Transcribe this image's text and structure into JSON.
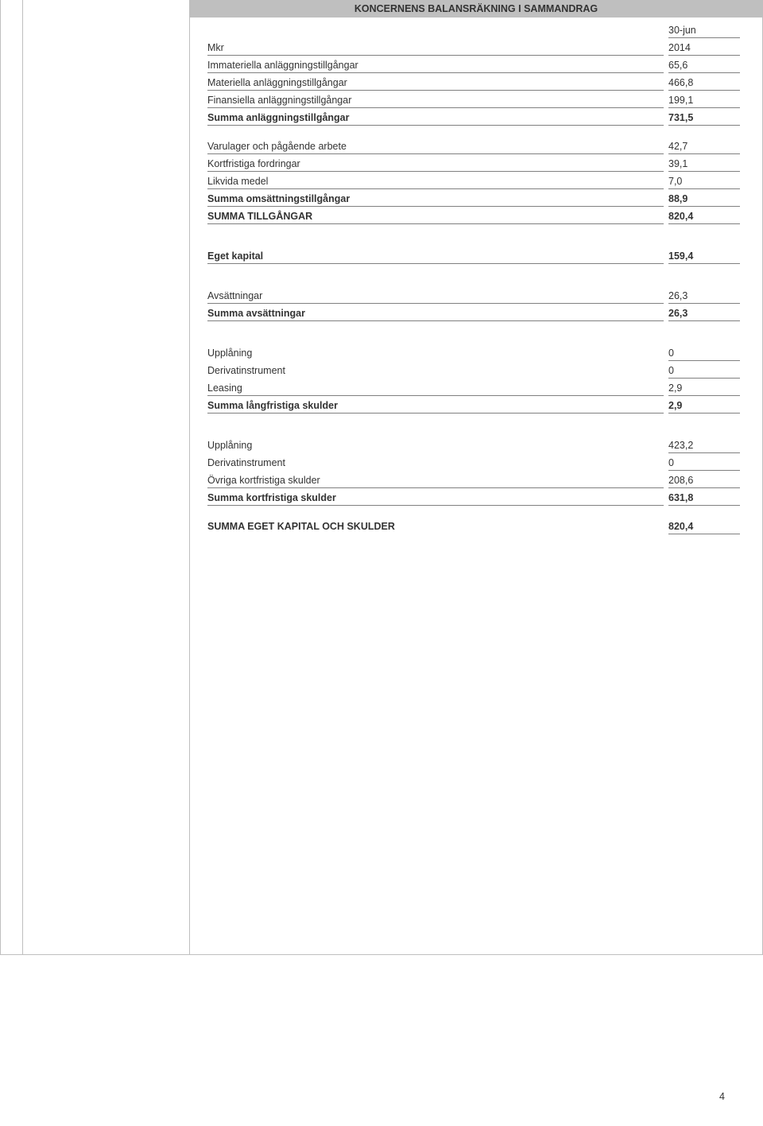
{
  "header_title": "KONCERNENS BALANSRÄKNING I SAMMANDRAG",
  "date_label": "30-jun",
  "mkr_label": "Mkr",
  "year": "2014",
  "rows": {
    "immateriella": {
      "label": "Immateriella anläggningstillgångar",
      "value": "65,6"
    },
    "materiella": {
      "label": "Materiella anläggningstillgångar",
      "value": "466,8"
    },
    "finansiella": {
      "label": "Finansiella anläggningstillgångar",
      "value": "199,1"
    },
    "summa_anlagg": {
      "label": "Summa anläggningstillgångar",
      "value": "731,5"
    },
    "varulager": {
      "label": "Varulager och pågående arbete",
      "value": "42,7"
    },
    "kortfristiga_fordr": {
      "label": "Kortfristiga fordringar",
      "value": "39,1"
    },
    "likvida": {
      "label": "Likvida medel",
      "value": "7,0"
    },
    "summa_oms": {
      "label": "Summa omsättningstillgångar",
      "value": "88,9"
    },
    "summa_tillg": {
      "label": "SUMMA TILLGÅNGAR",
      "value": "820,4"
    },
    "eget_kapital": {
      "label": "Eget kapital",
      "value": "159,4"
    },
    "avsattningar": {
      "label": "Avsättningar",
      "value": "26,3"
    },
    "summa_avs": {
      "label": "Summa avsättningar",
      "value": "26,3"
    },
    "upplaning1": {
      "label": "Upplåning",
      "value": "0"
    },
    "derivat1": {
      "label": "Derivatinstrument",
      "value": "0"
    },
    "leasing": {
      "label": "Leasing",
      "value": "2,9"
    },
    "summa_lang": {
      "label": "Summa långfristiga skulder",
      "value": "2,9"
    },
    "upplaning2": {
      "label": "Upplåning",
      "value": "423,2"
    },
    "derivat2": {
      "label": "Derivatinstrument",
      "value": "0"
    },
    "ovriga_kort": {
      "label": "Övriga kortfristiga skulder",
      "value": "208,6"
    },
    "summa_kort": {
      "label": "Summa kortfristiga skulder",
      "value": "631,8"
    },
    "summa_eget": {
      "label": "SUMMA EGET KAPITAL OCH SKULDER",
      "value": "820,4"
    }
  },
  "page_number": "4",
  "colors": {
    "header_bg": "#bfbfbf",
    "border": "#bfbfbf",
    "underline": "#808080",
    "text": "#333333",
    "background": "#ffffff"
  },
  "typography": {
    "font_family": "Verdana",
    "body_size_pt": 9,
    "header_weight": "bold"
  }
}
